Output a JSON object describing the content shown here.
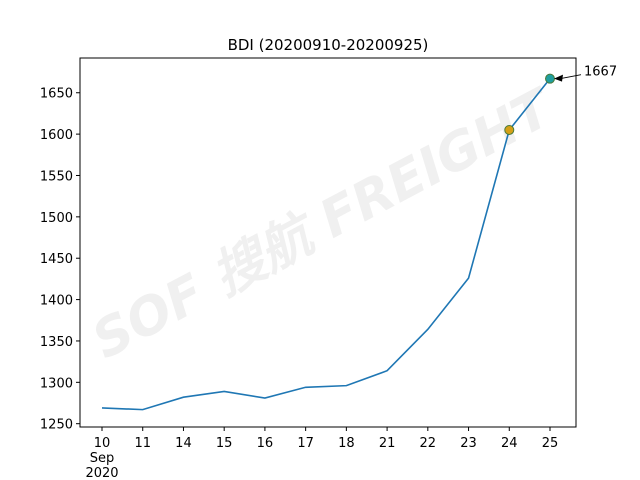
{
  "chart_data": {
    "type": "line",
    "title": "BDI (20200910-20200925)",
    "categories": [
      "10",
      "11",
      "14",
      "15",
      "16",
      "17",
      "18",
      "21",
      "22",
      "23",
      "24",
      "25"
    ],
    "x_month": "Sep",
    "x_year": "2020",
    "values": [
      1269,
      1267,
      1282,
      1289,
      1281,
      1294,
      1296,
      1314,
      1364,
      1426,
      1605,
      1667
    ],
    "color": "#1f77b4",
    "marker_values": [
      null,
      null,
      null,
      null,
      null,
      null,
      null,
      null,
      null,
      null,
      1605,
      1667
    ],
    "marker_colors": [
      null,
      null,
      null,
      null,
      null,
      null,
      null,
      null,
      null,
      null,
      "#d4a017",
      "#1f9e9e"
    ],
    "annotation": "1667",
    "watermark": "SOF 搜航 FREIGHT",
    "ylim": [
      1246,
      1692
    ],
    "yticks": [
      1250,
      1300,
      1350,
      1400,
      1450,
      1500,
      1550,
      1600,
      1650
    ]
  }
}
